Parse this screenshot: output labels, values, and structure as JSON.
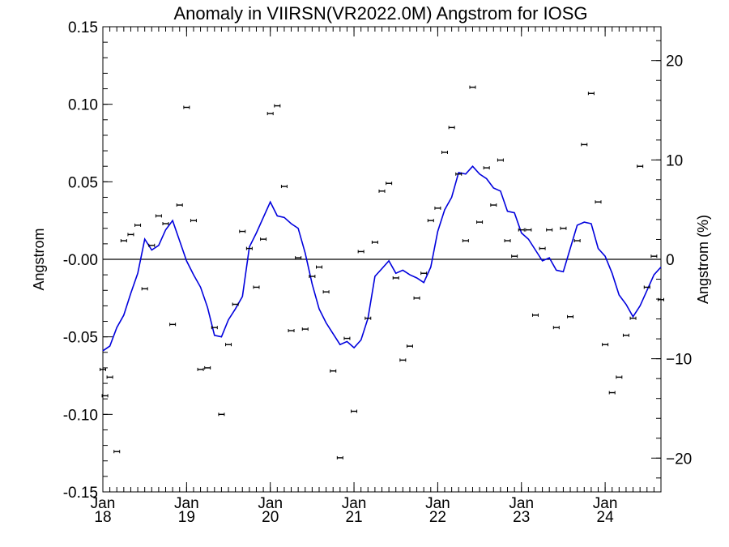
{
  "chart_data": {
    "type": "line",
    "title": "Anomaly in VIIRSN(VR2022.0M) Angstrom for IOSG",
    "ylabel": "Angstrom",
    "ylabel_right": "Angstrom (%)",
    "xlabel": "",
    "x_ticks": [
      {
        "month": "Jan",
        "year": "18",
        "t": 0
      },
      {
        "month": "Jan",
        "year": "19",
        "t": 12
      },
      {
        "month": "Jan",
        "year": "20",
        "t": 24
      },
      {
        "month": "Jan",
        "year": "21",
        "t": 36
      },
      {
        "month": "Jan",
        "year": "22",
        "t": 48
      },
      {
        "month": "Jan",
        "year": "23",
        "t": 60
      },
      {
        "month": "Jan",
        "year": "24",
        "t": 72
      }
    ],
    "xlim": [
      0,
      80
    ],
    "ylim": [
      -0.15,
      0.15
    ],
    "y_ticks": [
      "0.15",
      "0.10",
      "0.05",
      "-0.00",
      "-0.05",
      "-0.10",
      "-0.15"
    ],
    "y_tick_values": [
      0.15,
      0.1,
      0.05,
      0.0,
      -0.05,
      -0.1,
      -0.15
    ],
    "y2lim": [
      -23.4,
      23.4
    ],
    "y2_ticks": [
      "20",
      "10",
      "0",
      "−10",
      "−20"
    ],
    "y2_tick_values": [
      20,
      10,
      0,
      -10,
      -20
    ],
    "zero_line": true,
    "colors": {
      "line": "#0000dd",
      "points": "#000000",
      "zero": "#000000"
    },
    "series": [
      {
        "type": "scatter",
        "x": [
          0,
          0.3,
          1,
          2,
          3,
          4,
          5,
          6,
          7,
          8,
          9,
          10,
          11,
          12,
          13,
          14,
          15,
          16,
          17,
          18,
          19,
          20,
          21,
          22,
          23,
          24,
          25,
          26,
          27,
          28,
          29,
          30,
          31,
          32,
          33,
          34,
          35,
          36,
          37,
          38,
          39,
          40,
          41,
          42,
          43,
          44,
          45,
          46,
          47,
          48,
          49,
          50,
          51,
          52,
          53,
          54,
          55,
          56,
          57,
          58,
          59,
          60,
          61,
          62,
          63,
          64,
          65,
          66,
          67,
          68,
          69,
          70,
          71,
          72,
          73,
          74,
          75,
          76,
          77,
          78,
          79,
          80
        ],
        "y": [
          -0.071,
          -0.088,
          -0.076,
          -0.124,
          0.012,
          0.016,
          0.022,
          -0.019,
          0.009,
          0.028,
          0.023,
          -0.042,
          0.035,
          0.098,
          0.025,
          -0.071,
          -0.07,
          -0.044,
          -0.1,
          -0.055,
          -0.029,
          0.018,
          0.007,
          -0.018,
          0.013,
          0.094,
          0.099,
          0.047,
          -0.046,
          0.001,
          -0.045,
          -0.011,
          -0.005,
          -0.021,
          -0.072,
          -0.128,
          -0.051,
          -0.098,
          0.005,
          -0.038,
          0.011,
          0.044,
          0.049,
          -0.012,
          -0.065,
          -0.056,
          -0.025,
          -0.009,
          0.025,
          0.033,
          0.069,
          0.085,
          0.055,
          0.012,
          0.111,
          0.024,
          0.059,
          0.035,
          0.064,
          0.012,
          0.002,
          0.019,
          0.019,
          -0.036,
          0.007,
          0.019,
          -0.044,
          0.02,
          -0.037,
          0.012,
          0.074,
          0.107,
          0.037,
          -0.055,
          -0.086,
          -0.076,
          -0.049,
          -0.038,
          0.06,
          -0.018,
          0.002,
          -0.026
        ]
      },
      {
        "type": "line",
        "x": [
          0,
          1,
          2,
          3,
          4,
          5,
          6,
          7,
          8,
          9,
          10,
          11,
          12,
          13,
          14,
          15,
          16,
          17,
          18,
          19,
          20,
          21,
          22,
          23,
          24,
          25,
          26,
          27,
          28,
          29,
          30,
          31,
          32,
          33,
          34,
          35,
          36,
          37,
          38,
          39,
          40,
          41,
          42,
          43,
          44,
          45,
          46,
          47,
          48,
          49,
          50,
          51,
          52,
          53,
          54,
          55,
          56,
          57,
          58,
          59,
          60,
          61,
          62,
          63,
          64,
          65,
          66,
          67,
          68,
          69,
          70,
          71,
          72,
          73,
          74,
          75,
          76,
          77,
          78,
          79,
          80
        ],
        "y": [
          -0.059,
          -0.056,
          -0.044,
          -0.036,
          -0.022,
          -0.009,
          0.013,
          0.006,
          0.009,
          0.019,
          0.025,
          0.012,
          -0.001,
          -0.01,
          -0.018,
          -0.031,
          -0.049,
          -0.05,
          -0.039,
          -0.032,
          -0.024,
          0.008,
          0.017,
          0.027,
          0.037,
          0.028,
          0.027,
          0.023,
          0.02,
          0.004,
          -0.016,
          -0.032,
          -0.041,
          -0.048,
          -0.055,
          -0.053,
          -0.057,
          -0.052,
          -0.038,
          -0.011,
          -0.006,
          -0.001,
          -0.009,
          -0.007,
          -0.01,
          -0.012,
          -0.015,
          -0.005,
          0.018,
          0.032,
          0.04,
          0.056,
          0.055,
          0.06,
          0.055,
          0.052,
          0.046,
          0.044,
          0.031,
          0.03,
          0.017,
          0.013,
          0.006,
          -0.001,
          0.001,
          -0.007,
          -0.008,
          0.007,
          0.022,
          0.024,
          0.023,
          0.007,
          0.002,
          -0.009,
          -0.023,
          -0.029,
          -0.037,
          -0.03,
          -0.02,
          -0.01,
          -0.005
        ]
      }
    ]
  }
}
